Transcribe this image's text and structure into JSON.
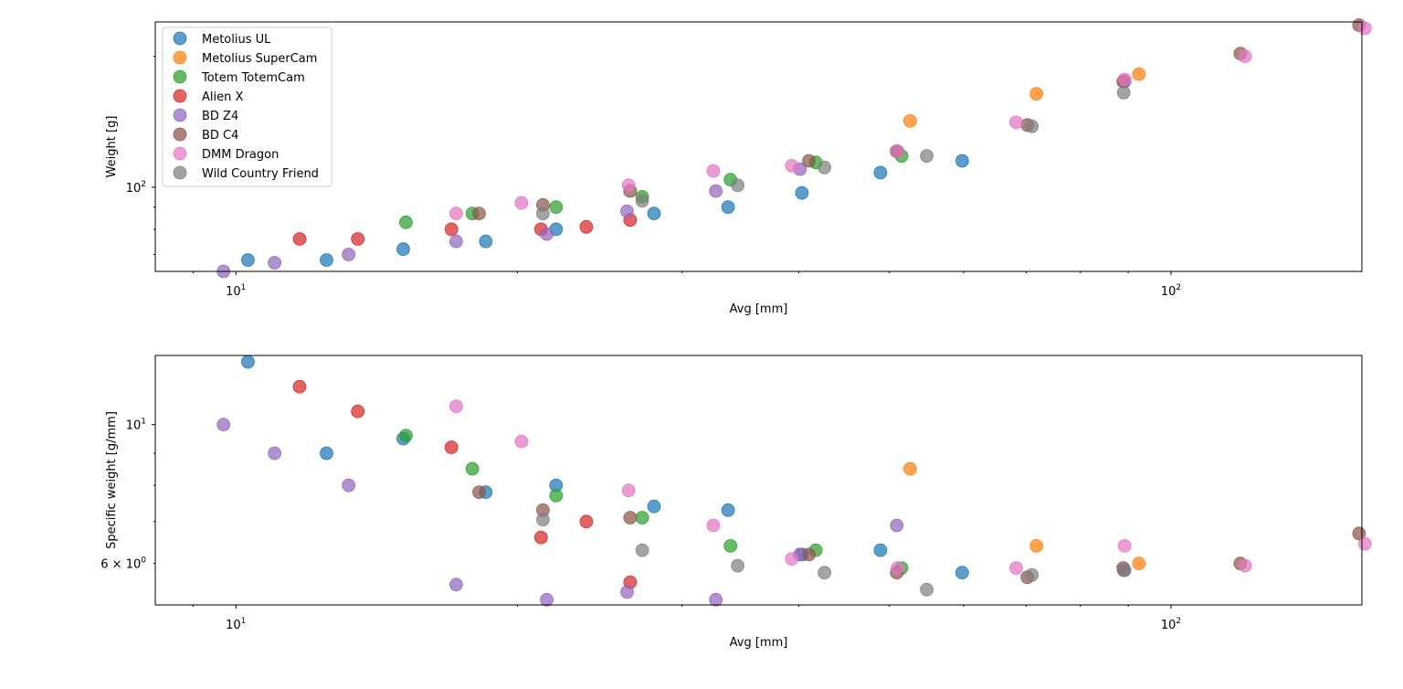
{
  "series_colors": {
    "Metolius UL": "#1f77b4",
    "Metolius SuperCam": "#ff7f0e",
    "Totem TotemCam": "#2ca02c",
    "Alien X": "#d62728",
    "BD Z4": "#9467bd",
    "BD C4": "#8c564b",
    "DMM Dragon": "#e377c2",
    "Wild Country Friend": "#7f7f7f"
  },
  "chart_data": [
    {
      "type": "scatter",
      "xlabel": "Avg [mm]",
      "ylabel": "Weight [g]",
      "xscale": "log",
      "yscale": "log",
      "xlim": [
        8.2,
        160
      ],
      "ylim": [
        64,
        240
      ],
      "xticks": [
        {
          "value": 10,
          "base": "10",
          "exp": "1"
        },
        {
          "value": 100,
          "base": "10",
          "exp": "2"
        }
      ],
      "yticks": [
        {
          "value": 100,
          "base": "10",
          "exp": "2"
        }
      ],
      "grid": false,
      "legend_position": "upper-left",
      "legend": [
        "Metolius UL",
        "Metolius SuperCam",
        "Totem TotemCam",
        "Alien X",
        "BD Z4",
        "BD C4",
        "DMM Dragon",
        "Wild Country Friend"
      ],
      "series": [
        {
          "name": "Metolius UL",
          "points": [
            [
              10.3,
              68
            ],
            [
              12.5,
              68
            ],
            [
              15.1,
              72
            ],
            [
              18.5,
              75
            ],
            [
              22,
              80
            ],
            [
              28,
              87
            ],
            [
              33.6,
              90
            ],
            [
              40.3,
              97
            ],
            [
              48.9,
              108
            ],
            [
              59.8,
              115
            ]
          ]
        },
        {
          "name": "Metolius SuperCam",
          "points": [
            [
              52.6,
              142
            ],
            [
              71.8,
              164
            ],
            [
              92.4,
              182
            ]
          ]
        },
        {
          "name": "Totem TotemCam",
          "points": [
            [
              15.2,
              83
            ],
            [
              17.9,
              87
            ],
            [
              22,
              90
            ],
            [
              27.2,
              95
            ],
            [
              33.8,
              104
            ],
            [
              41.7,
              114
            ],
            [
              51.5,
              118
            ]
          ]
        },
        {
          "name": "Alien X",
          "points": [
            [
              11.7,
              76
            ],
            [
              13.5,
              76
            ],
            [
              17,
              80
            ],
            [
              21.2,
              80
            ],
            [
              23.7,
              81
            ],
            [
              26.4,
              84
            ]
          ]
        },
        {
          "name": "BD Z4",
          "points": [
            [
              9.7,
              64
            ],
            [
              11,
              67
            ],
            [
              13.2,
              70
            ],
            [
              17.2,
              75
            ],
            [
              21.5,
              78
            ],
            [
              26.2,
              88
            ],
            [
              32.6,
              98
            ],
            [
              40.1,
              110
            ],
            [
              50.9,
              121
            ],
            [
              89.2,
              175
            ]
          ]
        },
        {
          "name": "BD C4",
          "points": [
            [
              18.2,
              87
            ],
            [
              21.3,
              91
            ],
            [
              26.4,
              98
            ],
            [
              41,
              115
            ],
            [
              50.9,
              121
            ],
            [
              70.2,
              139
            ],
            [
              88.9,
              175
            ],
            [
              118.6,
              203
            ],
            [
              158.9,
              236
            ]
          ]
        },
        {
          "name": "DMM Dragon",
          "points": [
            [
              17.2,
              87
            ],
            [
              20.2,
              92
            ],
            [
              26.3,
              101
            ],
            [
              32.4,
              109
            ],
            [
              39.3,
              112
            ],
            [
              51,
              121
            ],
            [
              68.3,
              141
            ],
            [
              89.2,
              177
            ],
            [
              120,
              200
            ],
            [
              161.2,
              232
            ]
          ]
        },
        {
          "name": "Wild Country Friend",
          "points": [
            [
              21.3,
              87
            ],
            [
              27.2,
              93
            ],
            [
              34.4,
              101
            ],
            [
              42.6,
              111
            ],
            [
              54.8,
              118
            ],
            [
              71,
              138
            ],
            [
              89,
              165
            ]
          ]
        }
      ]
    },
    {
      "type": "scatter",
      "xlabel": "Avg [mm]",
      "ylabel": "Specific weight [g/mm]",
      "xscale": "log",
      "yscale": "log",
      "xlim": [
        8.2,
        160
      ],
      "ylim": [
        5.15,
        12.9
      ],
      "xticks": [
        {
          "value": 10,
          "base": "10",
          "exp": "1"
        },
        {
          "value": 100,
          "base": "10",
          "exp": "2"
        }
      ],
      "yticks": [
        {
          "value": 10,
          "base": "10",
          "exp": "1"
        },
        {
          "value": 6,
          "base": "6 × 10",
          "exp": "0"
        }
      ],
      "grid": false,
      "series": [
        {
          "name": "Metolius UL",
          "points": [
            [
              10.3,
              12.6
            ],
            [
              12.5,
              9
            ],
            [
              15.1,
              9.5
            ],
            [
              18.5,
              7.8
            ],
            [
              22,
              8
            ],
            [
              28,
              7.4
            ],
            [
              33.6,
              7.3
            ],
            [
              40.3,
              6.2
            ],
            [
              48.9,
              6.3
            ],
            [
              59.8,
              5.8
            ]
          ]
        },
        {
          "name": "Metolius SuperCam",
          "points": [
            [
              52.6,
              8.5
            ],
            [
              71.8,
              6.4
            ],
            [
              92.4,
              6
            ]
          ]
        },
        {
          "name": "Totem TotemCam",
          "points": [
            [
              15.2,
              9.6
            ],
            [
              17.9,
              8.5
            ],
            [
              22,
              7.7
            ],
            [
              27.2,
              7.1
            ],
            [
              33.8,
              6.4
            ],
            [
              41.7,
              6.3
            ],
            [
              51.5,
              5.9
            ]
          ]
        },
        {
          "name": "Alien X",
          "points": [
            [
              11.7,
              11.5
            ],
            [
              13.5,
              10.5
            ],
            [
              17,
              9.2
            ],
            [
              21.2,
              6.6
            ],
            [
              23.7,
              7
            ],
            [
              26.4,
              5.6
            ]
          ]
        },
        {
          "name": "BD Z4",
          "points": [
            [
              9.7,
              10
            ],
            [
              11,
              9
            ],
            [
              13.2,
              8
            ],
            [
              17.2,
              5.55
            ],
            [
              21.5,
              5.25
            ],
            [
              26.2,
              5.4
            ],
            [
              32.6,
              5.25
            ],
            [
              40.1,
              6.2
            ],
            [
              50.9,
              6.9
            ],
            [
              89.2,
              5.85
            ]
          ]
        },
        {
          "name": "BD C4",
          "points": [
            [
              18.2,
              7.8
            ],
            [
              21.3,
              7.3
            ],
            [
              26.4,
              7.1
            ],
            [
              41,
              6.2
            ],
            [
              50.9,
              5.8
            ],
            [
              70.2,
              5.7
            ],
            [
              88.9,
              5.9
            ],
            [
              118.6,
              6
            ],
            [
              158.9,
              6.7
            ]
          ]
        },
        {
          "name": "DMM Dragon",
          "points": [
            [
              17.2,
              10.7
            ],
            [
              20.2,
              9.4
            ],
            [
              26.3,
              7.85
            ],
            [
              32.4,
              6.9
            ],
            [
              39.3,
              6.1
            ],
            [
              51,
              5.9
            ],
            [
              68.3,
              5.9
            ],
            [
              89.2,
              6.4
            ],
            [
              120,
              5.95
            ],
            [
              161.2,
              6.45
            ]
          ]
        },
        {
          "name": "Wild Country Friend",
          "points": [
            [
              21.3,
              7.05
            ],
            [
              27.2,
              6.3
            ],
            [
              34.4,
              5.95
            ],
            [
              42.6,
              5.8
            ],
            [
              54.8,
              5.45
            ],
            [
              71,
              5.75
            ],
            [
              89,
              5.85
            ]
          ]
        }
      ]
    }
  ]
}
